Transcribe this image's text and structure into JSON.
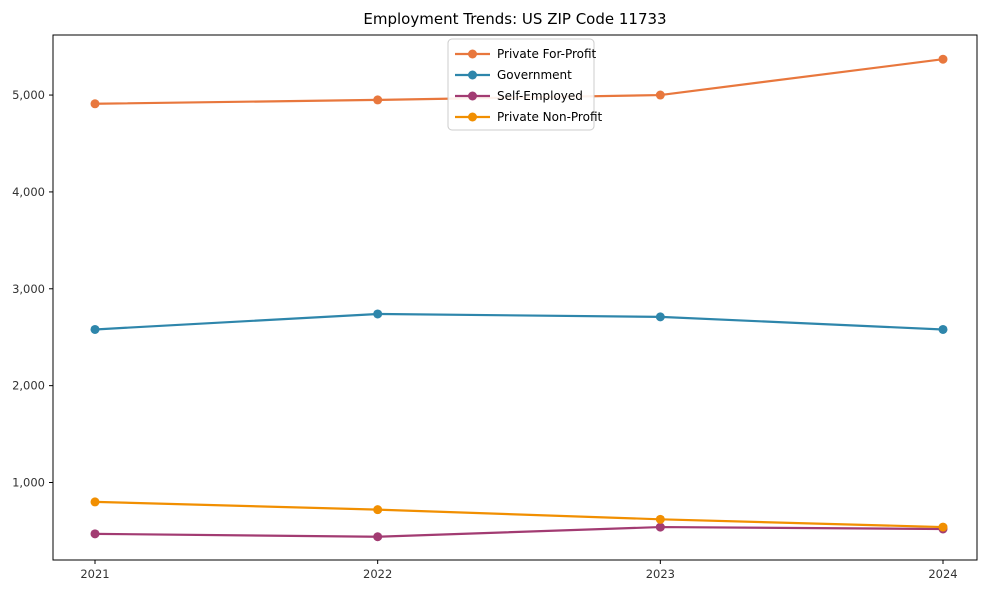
{
  "chart_data": {
    "type": "line",
    "title": "Employment Trends: US ZIP Code 11733",
    "xlabel": "",
    "ylabel": "",
    "categories": [
      "2021",
      "2022",
      "2023",
      "2024"
    ],
    "series": [
      {
        "name": "Private For-Profit",
        "color": "#E8773D",
        "values": [
          4910,
          4950,
          5000,
          5370
        ]
      },
      {
        "name": "Government",
        "color": "#2E86AB",
        "values": [
          2580,
          2740,
          2710,
          2580
        ]
      },
      {
        "name": "Self-Employed",
        "color": "#A23B72",
        "values": [
          470,
          440,
          540,
          520
        ]
      },
      {
        "name": "Private Non-Profit",
        "color": "#F18F01",
        "values": [
          800,
          720,
          620,
          540
        ]
      }
    ],
    "yticks": [
      1000,
      2000,
      3000,
      4000,
      5000
    ],
    "ytick_labels": [
      "1,000",
      "2,000",
      "3,000",
      "4,000",
      "5,000"
    ],
    "ylim": [
      200,
      5620
    ],
    "grid": false,
    "marker": "circle",
    "legend_position": "upper center",
    "legend_border_color": "#cccccc",
    "axis_color": "#000000",
    "tick_label_color": "#333333"
  }
}
